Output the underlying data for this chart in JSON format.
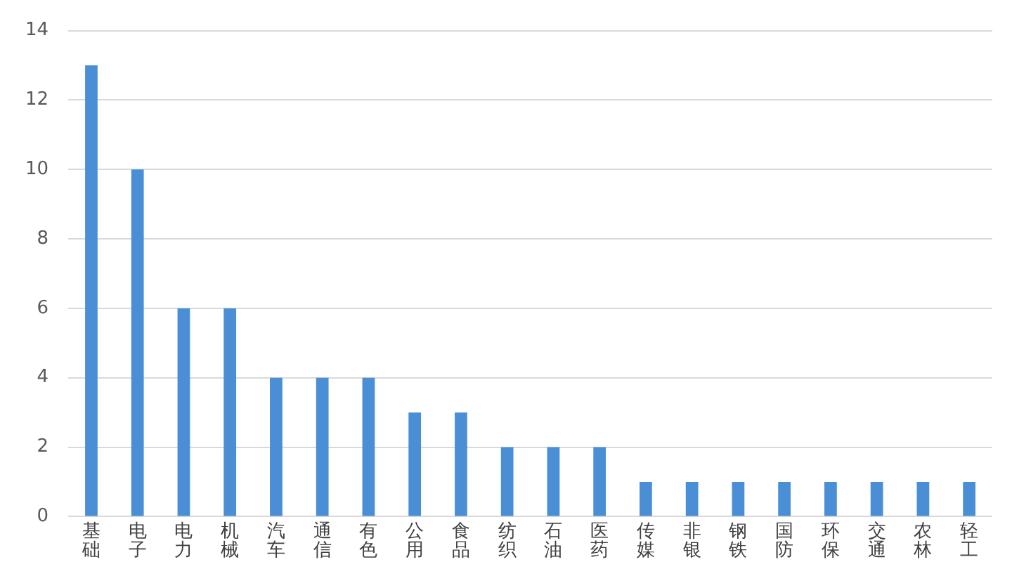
{
  "chart_data": {
    "type": "bar",
    "categories": [
      "基础",
      "电子",
      "电力",
      "机械",
      "汽车",
      "通信",
      "有色",
      "公用",
      "食品",
      "纺织",
      "石油",
      "医药",
      "传媒",
      "非银",
      "钢铁",
      "国防",
      "环保",
      "交通",
      "农林",
      "轻工"
    ],
    "values": [
      13,
      10,
      6,
      6,
      4,
      4,
      4,
      3,
      3,
      2,
      2,
      2,
      1,
      1,
      1,
      1,
      1,
      1,
      1,
      1
    ],
    "color": "#4a8fd6",
    "ylim": [
      0,
      14
    ],
    "yticks": [
      0,
      2,
      4,
      6,
      8,
      10,
      12,
      14
    ],
    "grid": "y"
  }
}
